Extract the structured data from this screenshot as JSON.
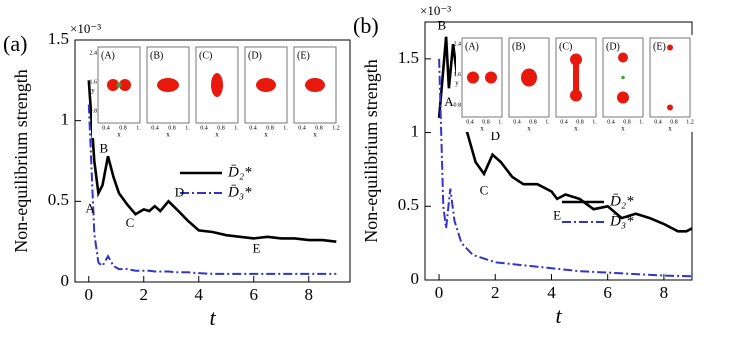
{
  "chart_data": [
    {
      "type": "line",
      "panel_label": "(a)",
      "ylabel": "Non-equilibrium strength",
      "xlabel": "t",
      "multiplier": "×10⁻³",
      "xlim": [
        -0.5,
        9.5
      ],
      "xticks": [
        0,
        2,
        4,
        6,
        8
      ],
      "ylim": [
        0,
        1.5
      ],
      "yticks": [
        0,
        0.5,
        1,
        1.5
      ],
      "series": [
        {
          "name": "D̄₂*",
          "color": "#000000",
          "x": [
            0,
            0.2,
            0.35,
            0.5,
            0.7,
            0.9,
            1.1,
            1.4,
            1.7,
            2.0,
            2.2,
            2.4,
            2.6,
            2.9,
            3.2,
            3.6,
            4.0,
            4.5,
            5.0,
            5.5,
            6.0,
            6.5,
            7.0,
            7.5,
            8.0,
            8.5,
            9.0
          ],
          "values": [
            1.25,
            0.75,
            0.55,
            0.6,
            0.78,
            0.65,
            0.55,
            0.48,
            0.42,
            0.45,
            0.44,
            0.47,
            0.44,
            0.5,
            0.45,
            0.38,
            0.32,
            0.31,
            0.29,
            0.28,
            0.27,
            0.28,
            0.27,
            0.27,
            0.26,
            0.26,
            0.25
          ]
        },
        {
          "name": "D̄₃*",
          "color": "#3333cc",
          "x": [
            0,
            0.2,
            0.35,
            0.5,
            0.7,
            0.9,
            1.1,
            1.4,
            1.7,
            2.0,
            2.2,
            2.4,
            2.6,
            2.9,
            3.2,
            3.6,
            4.0,
            4.5,
            5.0,
            5.5,
            6.0,
            6.5,
            7.0,
            7.5,
            8.0,
            8.5,
            9.0
          ],
          "values": [
            1.1,
            0.3,
            0.12,
            0.1,
            0.16,
            0.1,
            0.08,
            0.08,
            0.07,
            0.07,
            0.07,
            0.065,
            0.065,
            0.065,
            0.06,
            0.06,
            0.055,
            0.05,
            0.05,
            0.05,
            0.05,
            0.05,
            0.05,
            0.05,
            0.05,
            0.05,
            0.05
          ]
        }
      ],
      "annotations": [
        "A",
        "B",
        "C",
        "D",
        "E"
      ],
      "insets": {
        "panels": [
          "(A)",
          "(B)",
          "(C)",
          "(D)",
          "(E)"
        ],
        "xlabel": "x",
        "ylabel": "y",
        "xticks": [
          0.4,
          0.8,
          1.2
        ],
        "yticks": [
          0.8,
          1.6,
          2.4
        ]
      }
    },
    {
      "type": "line",
      "panel_label": "(b)",
      "ylabel": "Non-equilibrium strength",
      "xlabel": "t",
      "multiplier": "×10⁻³",
      "xlim": [
        -0.5,
        9
      ],
      "xticks": [
        0,
        2,
        4,
        6,
        8
      ],
      "ylim": [
        0,
        1.75
      ],
      "yticks": [
        0,
        0.5,
        1,
        1.5
      ],
      "series": [
        {
          "name": "D̄₂*",
          "color": "#000000",
          "x": [
            0,
            0.25,
            0.35,
            0.5,
            0.7,
            1.0,
            1.3,
            1.6,
            1.9,
            2.2,
            2.6,
            3.0,
            3.5,
            4.0,
            4.2,
            4.5,
            5.0,
            5.5,
            6.0,
            6.5,
            7.0,
            7.5,
            8.0,
            8.5,
            8.8,
            9.0
          ],
          "values": [
            1.1,
            1.65,
            1.3,
            1.6,
            1.3,
            1.0,
            0.8,
            0.72,
            0.85,
            0.8,
            0.7,
            0.65,
            0.65,
            0.6,
            0.55,
            0.58,
            0.55,
            0.48,
            0.5,
            0.42,
            0.45,
            0.42,
            0.38,
            0.33,
            0.33,
            0.35
          ]
        },
        {
          "name": "D̄₃*",
          "color": "#3333cc",
          "x": [
            0,
            0.15,
            0.25,
            0.4,
            0.55,
            0.8,
            1.2,
            2,
            3,
            4,
            5,
            6,
            7,
            8,
            9
          ],
          "values": [
            1.5,
            0.5,
            0.35,
            0.62,
            0.4,
            0.25,
            0.17,
            0.12,
            0.1,
            0.08,
            0.06,
            0.05,
            0.04,
            0.03,
            0.025
          ]
        }
      ],
      "annotations": [
        "A",
        "B",
        "C",
        "D",
        "E"
      ],
      "insets": {
        "panels": [
          "(A)",
          "(B)",
          "(C)",
          "(D)",
          "(E)"
        ],
        "xlabel": "x",
        "ylabel": "y",
        "xticks": [
          0.4,
          0.8,
          1.2
        ],
        "yticks": [
          0.8,
          1.6,
          2.4
        ]
      }
    }
  ]
}
